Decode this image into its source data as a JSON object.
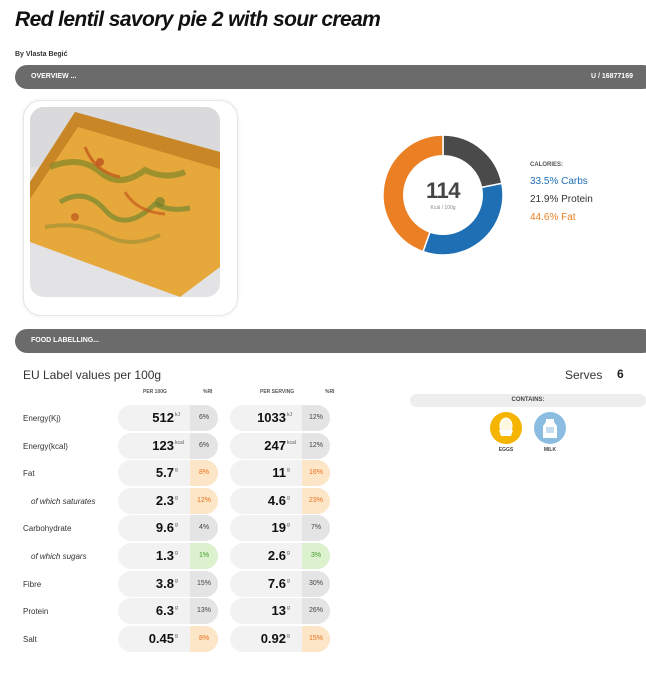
{
  "recipe": {
    "title": "Red lentil savory pie 2 with sour cream",
    "author": "By Vlasta Begić"
  },
  "overview_bar": {
    "label": "OVERVIEW ...",
    "id": "U / 16877169"
  },
  "calories": {
    "value": "114",
    "unit": "Kcal / 100g",
    "caption": "CALORIES:",
    "carbs": "33.5% Carbs",
    "protein": "21.9% Protein",
    "fat": "44.6% Fat"
  },
  "chart_data": {
    "type": "pie",
    "title": "CALORIES:",
    "categories": [
      "Carbs",
      "Protein",
      "Fat"
    ],
    "values": [
      33.5,
      21.9,
      44.6
    ],
    "colors": [
      "#1f6fb5",
      "#4a4a4a",
      "#ea7f24"
    ]
  },
  "labelling_bar": {
    "label": "FOOD LABELLING..."
  },
  "eu": {
    "title": "EU Label values per 100g",
    "serves_label": "Serves",
    "serves_value": "6",
    "col_per100": "PER 100G",
    "col_ri": "%RI",
    "col_serving": "PER SERVING",
    "col_ri2": "%RI"
  },
  "nutrients": [
    {
      "name": "Energy(Kj)",
      "v100": "512",
      "u100": "kJ",
      "ri100": "6%",
      "vs": "1033",
      "us": "kJ",
      "ris": "12%"
    },
    {
      "name": "Energy(kcal)",
      "v100": "123",
      "u100": "kcal",
      "ri100": "6%",
      "vs": "247",
      "us": "kcal",
      "ris": "12%"
    },
    {
      "name": "Fat",
      "v100": "5.7",
      "u100": "g",
      "ri100": "8%",
      "vs": "11",
      "us": "g",
      "ris": "16%"
    },
    {
      "name": "of which saturates",
      "v100": "2.3",
      "u100": "g",
      "ri100": "12%",
      "vs": "4.6",
      "us": "g",
      "ris": "23%"
    },
    {
      "name": "Carbohydrate",
      "v100": "9.6",
      "u100": "g",
      "ri100": "4%",
      "vs": "19",
      "us": "g",
      "ris": "7%"
    },
    {
      "name": "of which sugars",
      "v100": "1.3",
      "u100": "g",
      "ri100": "1%",
      "vs": "2.6",
      "us": "g",
      "ris": "3%"
    },
    {
      "name": "Fibre",
      "v100": "3.8",
      "u100": "g",
      "ri100": "15%",
      "vs": "7.6",
      "us": "g",
      "ris": "30%"
    },
    {
      "name": "Protein",
      "v100": "6.3",
      "u100": "g",
      "ri100": "13%",
      "vs": "13",
      "us": "g",
      "ris": "26%"
    },
    {
      "name": "Salt",
      "v100": "0.45",
      "u100": "g",
      "ri100": "8%",
      "vs": "0.92",
      "us": "g",
      "ris": "15%"
    }
  ],
  "contains": {
    "label": "CONTAINS:",
    "eggs": "EGGS",
    "milk": "MILK",
    "eggs_color": "#f5b400",
    "milk_color": "#8bbde0"
  }
}
